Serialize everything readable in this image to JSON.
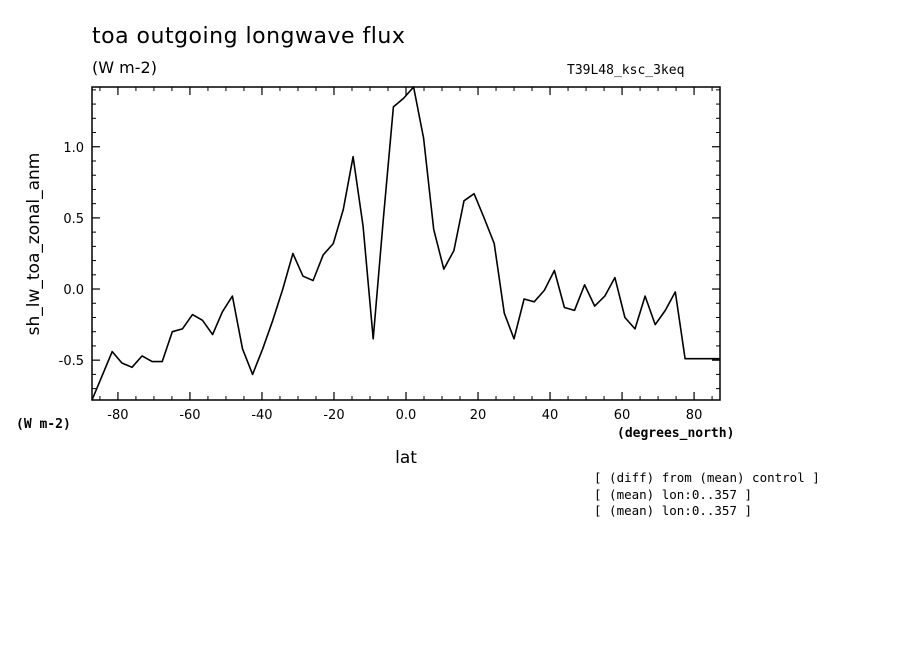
{
  "chart_data": {
    "type": "line",
    "title": "toa outgoing longwave flux",
    "subtitle": "(W m-2)",
    "run_label": "T39L48_ksc_3keq",
    "xlabel": "lat",
    "ylabel": "sh_lw_toa_zonal_anm",
    "x_units": "(degrees_north)",
    "y_units": "(W m-2)",
    "xlim": [
      -87.2,
      87.2
    ],
    "ylim": [
      -0.78,
      1.42
    ],
    "xticks": [
      -80,
      -60,
      -40,
      -20,
      0,
      20,
      40,
      60,
      80
    ],
    "xtick_labels": [
      "-80",
      "-60",
      "-40",
      "-20",
      "0.0",
      "20",
      "40",
      "60",
      "80"
    ],
    "yticks": [
      -0.5,
      0.0,
      0.5,
      1.0
    ],
    "ytick_labels": [
      "-0.5",
      "0.0",
      "0.5",
      "1.0"
    ],
    "grid": false,
    "series": [
      {
        "x": [
          -87.2,
          -84.4,
          -81.6,
          -78.9,
          -76.1,
          -73.3,
          -70.5,
          -67.7,
          -64.9,
          -62.1,
          -59.3,
          -56.5,
          -53.7,
          -51.0,
          -48.2,
          -45.4,
          -42.6,
          -39.8,
          -37.0,
          -34.2,
          -31.4,
          -28.6,
          -25.8,
          -23.0,
          -20.2,
          -17.4,
          -14.7,
          -11.9,
          -9.1,
          -6.3,
          -3.5,
          -0.7,
          2.1,
          4.9,
          7.7,
          10.5,
          13.3,
          16.1,
          18.9,
          21.7,
          24.5,
          27.3,
          30.0,
          32.8,
          35.6,
          38.4,
          41.2,
          44.0,
          46.8,
          49.6,
          52.4,
          55.2,
          58.0,
          60.8,
          63.6,
          66.4,
          69.2,
          72.0,
          74.8,
          77.5,
          80.3,
          83.1,
          85.9,
          87.2
        ],
        "values": [
          -0.78,
          -0.61,
          -0.44,
          -0.52,
          -0.55,
          -0.47,
          -0.51,
          -0.51,
          -0.3,
          -0.28,
          -0.18,
          -0.22,
          -0.32,
          -0.16,
          -0.05,
          -0.42,
          -0.6,
          -0.42,
          -0.22,
          0.0,
          0.25,
          0.09,
          0.06,
          0.24,
          0.32,
          0.56,
          0.93,
          0.44,
          -0.35,
          0.49,
          1.28,
          1.34,
          1.42,
          1.06,
          0.42,
          0.14,
          0.27,
          0.62,
          0.67,
          0.5,
          0.32,
          -0.17,
          -0.35,
          -0.07,
          -0.09,
          -0.01,
          0.13,
          -0.13,
          -0.15,
          0.03,
          -0.12,
          -0.05,
          0.08,
          -0.2,
          -0.28,
          -0.05,
          -0.25,
          -0.15,
          -0.02,
          -0.49,
          -0.49,
          -0.49,
          -0.49,
          -0.49
        ]
      }
    ]
  },
  "notes": [
    "[ (diff) from (mean) control ]",
    "[ (mean) lon:0..357 ]",
    "[ (mean) lon:0..357 ]"
  ]
}
